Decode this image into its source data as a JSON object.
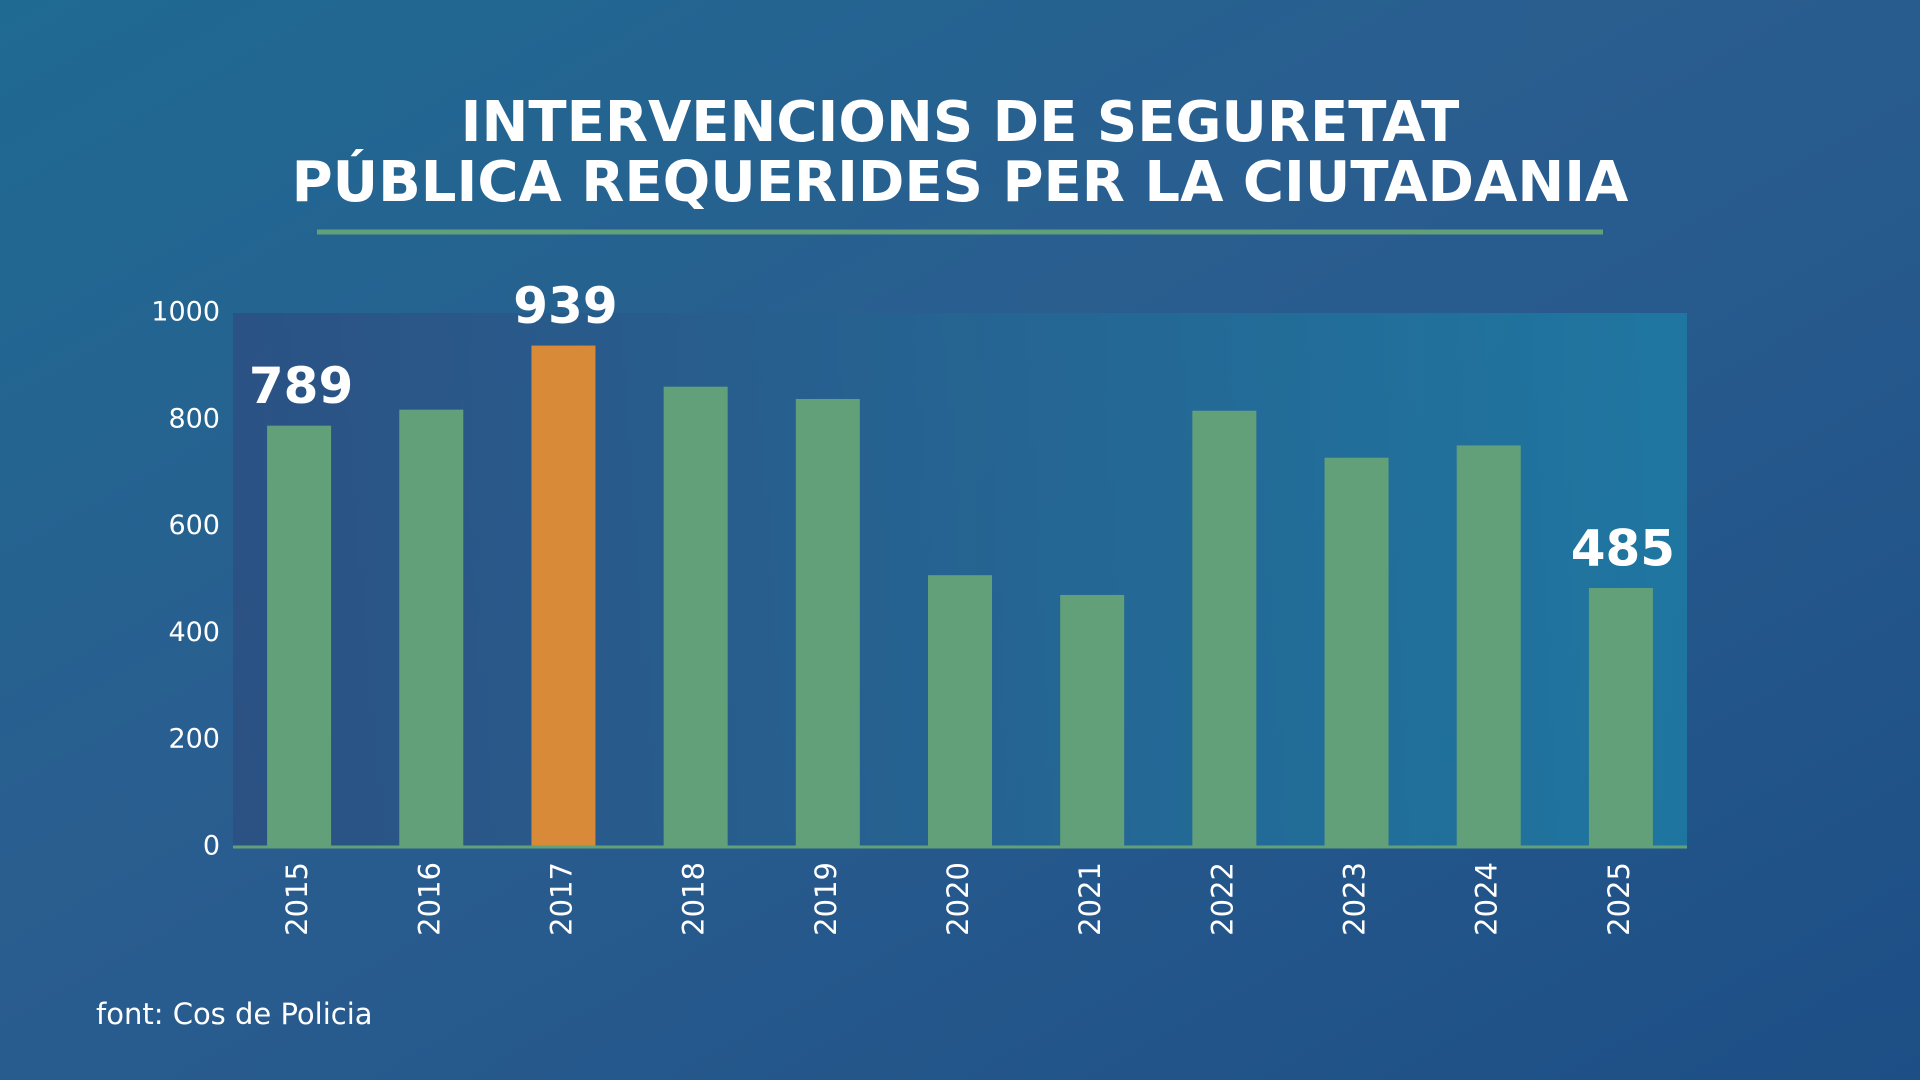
{
  "chart_data": {
    "type": "bar",
    "title": [
      "INTERVENCIONS DE SEGURETAT",
      "PÚBLICA REQUERIDES PER LA CIUTADANIA"
    ],
    "categories": [
      "2015",
      "2016",
      "2017",
      "2018",
      "2019",
      "2020",
      "2021",
      "2022",
      "2023",
      "2024",
      "2025"
    ],
    "values": [
      789,
      819,
      939,
      862,
      839,
      509,
      472,
      817,
      729,
      752,
      485
    ],
    "value_labels": [
      "789",
      null,
      "939",
      null,
      null,
      null,
      null,
      null,
      null,
      null,
      "485"
    ],
    "colors": [
      "#62a07a",
      "#62a07a",
      "#d98a38",
      "#62a07a",
      "#62a07a",
      "#62a07a",
      "#62a07a",
      "#62a07a",
      "#62a07a",
      "#62a07a",
      "#62a07a"
    ],
    "ylim": [
      0,
      1000
    ],
    "yticks": [
      0,
      200,
      400,
      600,
      800,
      1000
    ],
    "source": "font: Cos de Policia"
  }
}
